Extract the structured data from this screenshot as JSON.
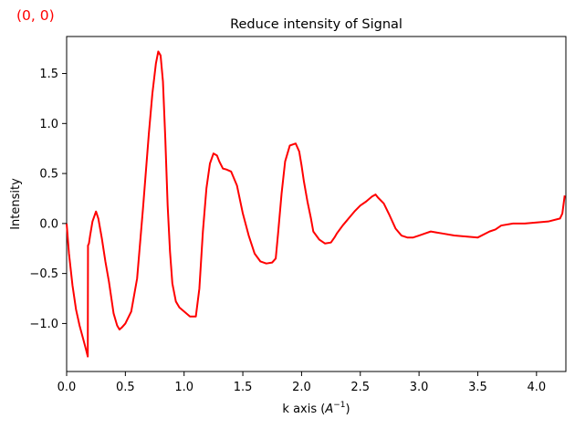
{
  "corner_annotation": {
    "text": "(0, 0)",
    "color": "#ff0000"
  },
  "chart_data": {
    "type": "line",
    "title": "Reduce intensity of  Signal",
    "xlabel": "k axis (A⁻¹)",
    "xlabel_base": "k axis (",
    "xlabel_unit": "A",
    "xlabel_exp": "−1",
    "xlabel_close": ")",
    "ylabel": "Intensity",
    "xlim": [
      0.0,
      4.25
    ],
    "ylim": [
      -1.48,
      1.87
    ],
    "x_ticks": [
      0.0,
      0.5,
      1.0,
      1.5,
      2.0,
      2.5,
      3.0,
      3.5,
      4.0
    ],
    "x_tick_labels": [
      "0.0",
      "0.5",
      "1.0",
      "1.5",
      "2.0",
      "2.5",
      "3.0",
      "3.5",
      "4.0"
    ],
    "y_ticks": [
      -1.0,
      -0.5,
      0.0,
      0.5,
      1.0,
      1.5
    ],
    "y_tick_labels": [
      "−1.0",
      "−0.5",
      "0.0",
      "0.5",
      "1.0",
      "1.5"
    ],
    "grid": false,
    "legend": "none",
    "series": [
      {
        "color": "#ff0000",
        "x": [
          0.0,
          0.02,
          0.05,
          0.08,
          0.11,
          0.14,
          0.165,
          0.18,
          0.182,
          0.19,
          0.2,
          0.22,
          0.25,
          0.27,
          0.3,
          0.33,
          0.36,
          0.4,
          0.43,
          0.45,
          0.47,
          0.5,
          0.55,
          0.6,
          0.65,
          0.7,
          0.73,
          0.76,
          0.78,
          0.8,
          0.82,
          0.84,
          0.86,
          0.88,
          0.9,
          0.93,
          0.96,
          1.0,
          1.05,
          1.1,
          1.13,
          1.16,
          1.19,
          1.22,
          1.25,
          1.28,
          1.3,
          1.33,
          1.36,
          1.4,
          1.45,
          1.5,
          1.55,
          1.6,
          1.65,
          1.7,
          1.75,
          1.78,
          1.8,
          1.83,
          1.86,
          1.9,
          1.95,
          1.98,
          2.0,
          2.02,
          2.05,
          2.08,
          2.1,
          2.15,
          2.2,
          2.25,
          2.28,
          2.3,
          2.35,
          2.4,
          2.45,
          2.5,
          2.55,
          2.6,
          2.63,
          2.65,
          2.7,
          2.75,
          2.8,
          2.85,
          2.9,
          2.95,
          3.0,
          3.05,
          3.1,
          3.15,
          3.2,
          3.3,
          3.4,
          3.5,
          3.6,
          3.65,
          3.7,
          3.8,
          3.9,
          4.0,
          4.1,
          4.2,
          4.22,
          4.24
        ],
        "y": [
          0.0,
          -0.3,
          -0.62,
          -0.86,
          -1.02,
          -1.15,
          -1.26,
          -1.33,
          -0.22,
          -0.2,
          -0.12,
          0.02,
          0.12,
          0.05,
          -0.15,
          -0.38,
          -0.58,
          -0.9,
          -1.02,
          -1.06,
          -1.04,
          -1.0,
          -0.88,
          -0.55,
          0.15,
          0.9,
          1.3,
          1.6,
          1.72,
          1.68,
          1.42,
          0.85,
          0.18,
          -0.28,
          -0.6,
          -0.78,
          -0.84,
          -0.88,
          -0.93,
          -0.93,
          -0.65,
          -0.08,
          0.35,
          0.6,
          0.7,
          0.68,
          0.62,
          0.55,
          0.54,
          0.52,
          0.38,
          0.1,
          -0.12,
          -0.3,
          -0.38,
          -0.4,
          -0.39,
          -0.35,
          -0.1,
          0.3,
          0.62,
          0.78,
          0.8,
          0.72,
          0.58,
          0.42,
          0.22,
          0.05,
          -0.08,
          -0.16,
          -0.2,
          -0.19,
          -0.14,
          -0.1,
          -0.02,
          0.05,
          0.12,
          0.18,
          0.22,
          0.27,
          0.29,
          0.26,
          0.2,
          0.08,
          -0.05,
          -0.12,
          -0.14,
          -0.14,
          -0.12,
          -0.1,
          -0.08,
          -0.09,
          -0.1,
          -0.12,
          -0.13,
          -0.14,
          -0.08,
          -0.06,
          -0.02,
          0.0,
          0.0,
          0.01,
          0.02,
          0.05,
          0.1,
          0.28
        ]
      }
    ]
  }
}
